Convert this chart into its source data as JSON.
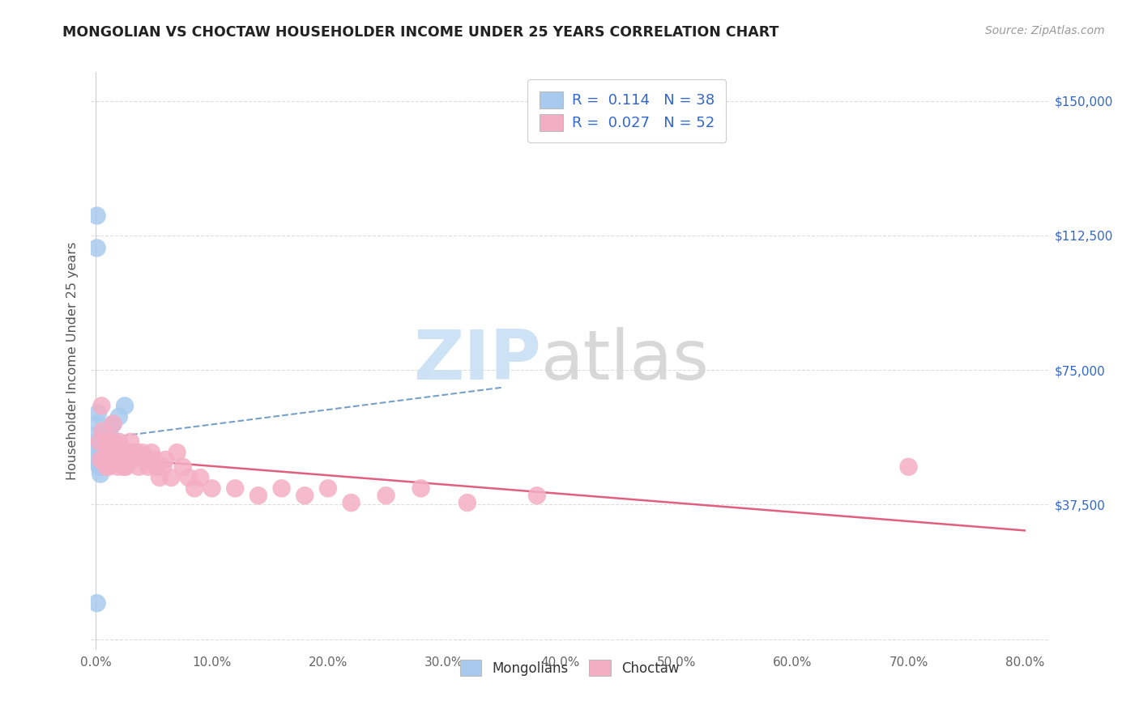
{
  "title": "MONGOLIAN VS CHOCTAW HOUSEHOLDER INCOME UNDER 25 YEARS CORRELATION CHART",
  "source_text": "Source: ZipAtlas.com",
  "ylabel": "Householder Income Under 25 years",
  "watermark_zip": "ZIP",
  "watermark_atlas": "atlas",
  "xlim": [
    -0.004,
    0.82
  ],
  "ylim": [
    -3000,
    158000
  ],
  "xtick_vals": [
    0.0,
    0.1,
    0.2,
    0.3,
    0.4,
    0.5,
    0.6,
    0.7,
    0.8
  ],
  "xticklabels": [
    "0.0%",
    "10.0%",
    "20.0%",
    "30.0%",
    "40.0%",
    "50.0%",
    "60.0%",
    "70.0%",
    "80.0%"
  ],
  "ytick_vals": [
    0,
    37500,
    75000,
    112500,
    150000
  ],
  "right_yticklabels": [
    "",
    "$37,500",
    "$75,000",
    "$112,500",
    "$150,000"
  ],
  "legend1_R": "0.114",
  "legend1_N": "38",
  "legend2_R": "0.027",
  "legend2_N": "52",
  "mongolian_color": "#a8caee",
  "choctaw_color": "#f4aec4",
  "mongolian_line_color": "#5588bb",
  "choctaw_line_color": "#e06080",
  "legend_text_color": "#3366cc",
  "title_color": "#222222",
  "source_color": "#999999",
  "grid_color": "#dddddd",
  "bottom_label1": "Mongolians",
  "bottom_label2": "Choctaw",
  "mongo_x": [
    0.001,
    0.001,
    0.002,
    0.002,
    0.002,
    0.002,
    0.003,
    0.003,
    0.003,
    0.003,
    0.003,
    0.004,
    0.004,
    0.004,
    0.004,
    0.005,
    0.005,
    0.005,
    0.005,
    0.006,
    0.006,
    0.006,
    0.007,
    0.007,
    0.007,
    0.007,
    0.008,
    0.008,
    0.008,
    0.009,
    0.009,
    0.01,
    0.01,
    0.012,
    0.015,
    0.02,
    0.025,
    0.001
  ],
  "mongo_y": [
    118000,
    109000,
    63000,
    60000,
    57000,
    55000,
    54000,
    52000,
    50000,
    49000,
    48000,
    52000,
    50000,
    48000,
    46000,
    55000,
    52000,
    50000,
    48000,
    55000,
    52000,
    50000,
    58000,
    55000,
    52000,
    50000,
    57000,
    55000,
    52000,
    55000,
    52000,
    57000,
    55000,
    58000,
    60000,
    62000,
    65000,
    10000
  ],
  "choctaw_x": [
    0.003,
    0.004,
    0.005,
    0.006,
    0.007,
    0.008,
    0.009,
    0.01,
    0.011,
    0.012,
    0.013,
    0.015,
    0.016,
    0.018,
    0.019,
    0.02,
    0.022,
    0.024,
    0.025,
    0.026,
    0.028,
    0.03,
    0.032,
    0.035,
    0.037,
    0.04,
    0.042,
    0.045,
    0.048,
    0.05,
    0.052,
    0.055,
    0.058,
    0.06,
    0.065,
    0.07,
    0.075,
    0.08,
    0.085,
    0.09,
    0.1,
    0.12,
    0.14,
    0.16,
    0.18,
    0.2,
    0.22,
    0.25,
    0.28,
    0.32,
    0.38,
    0.7
  ],
  "choctaw_y": [
    55000,
    50000,
    65000,
    58000,
    50000,
    55000,
    48000,
    52000,
    48000,
    55000,
    50000,
    60000,
    55000,
    52000,
    48000,
    55000,
    52000,
    48000,
    52000,
    48000,
    52000,
    55000,
    50000,
    52000,
    48000,
    52000,
    50000,
    48000,
    52000,
    50000,
    48000,
    45000,
    48000,
    50000,
    45000,
    52000,
    48000,
    45000,
    42000,
    45000,
    42000,
    42000,
    40000,
    42000,
    40000,
    42000,
    38000,
    40000,
    42000,
    38000,
    40000,
    48000
  ]
}
